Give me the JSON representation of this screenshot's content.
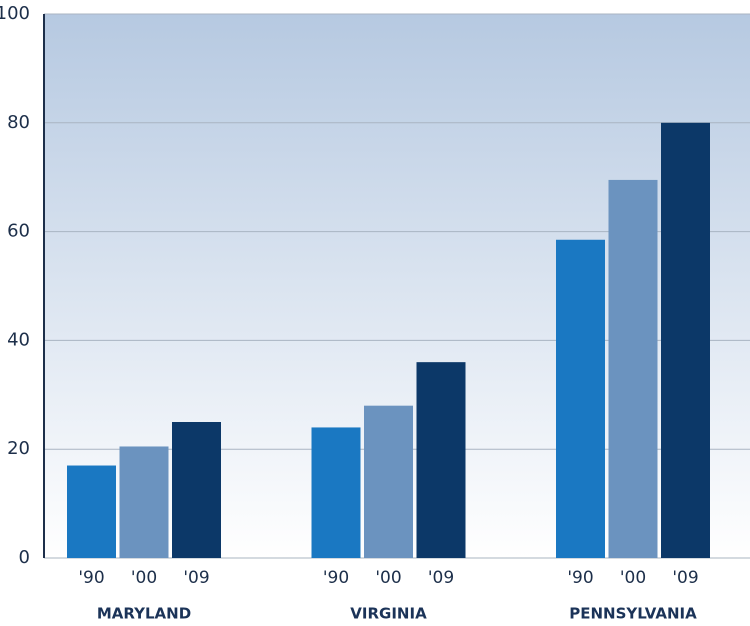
{
  "chart_data": {
    "type": "bar",
    "categories": [
      "MARYLAND",
      "VIRGINIA",
      "PENNSYLVANIA"
    ],
    "series": [
      {
        "name": "'90",
        "color": "#1a78c2",
        "values": [
          17,
          24,
          58.5
        ]
      },
      {
        "name": "'00",
        "color": "#6b93bf",
        "values": [
          20.5,
          28,
          69.5
        ]
      },
      {
        "name": "'09",
        "color": "#0c3868",
        "values": [
          25,
          36,
          80
        ]
      }
    ],
    "ylim": [
      0,
      100
    ],
    "yticks": [
      0,
      20,
      40,
      60,
      80,
      100
    ],
    "grid": true
  }
}
